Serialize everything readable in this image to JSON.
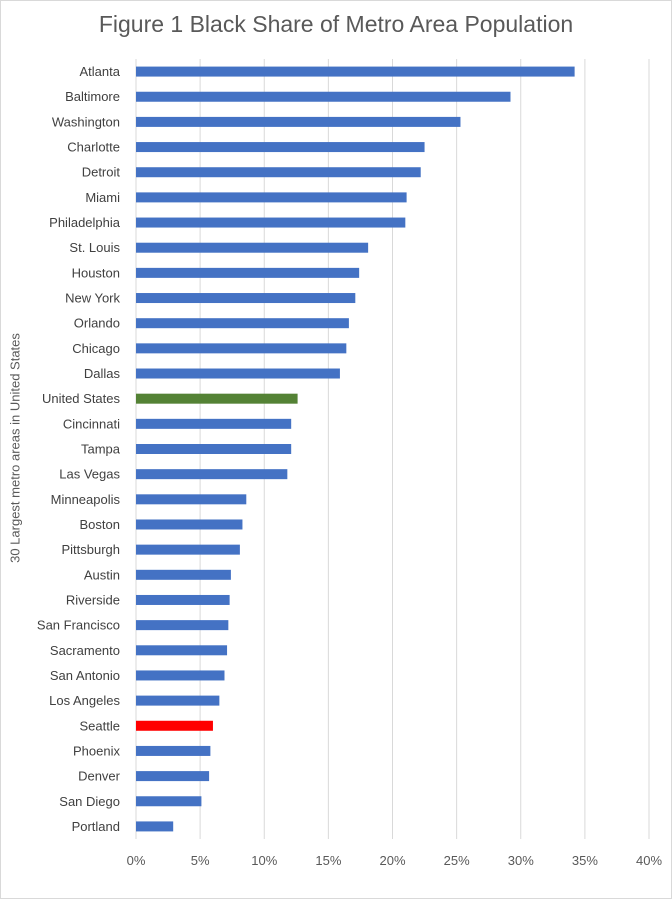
{
  "chart_data": {
    "type": "bar",
    "orientation": "horizontal",
    "title": "Figure 1 Black Share of Metro Area Population",
    "xlabel": "",
    "ylabel": "30 Largest metro areas in United States",
    "xlim": [
      0,
      40
    ],
    "x_unit": "%",
    "x_ticks": [
      "0%",
      "5%",
      "10%",
      "15%",
      "20%",
      "25%",
      "30%",
      "35%",
      "40%"
    ],
    "grid": "vertical",
    "legend": "none",
    "categories": [
      "Atlanta",
      "Baltimore",
      "Washington",
      "Charlotte",
      "Detroit",
      "Miami",
      "Philadelphia",
      "St. Louis",
      "Houston",
      "New York",
      "Orlando",
      "Chicago",
      "Dallas",
      "United States",
      "Cincinnati",
      "Tampa",
      "Las Vegas",
      "Minneapolis",
      "Boston",
      "Pittsburgh",
      "Austin",
      "Riverside",
      "San Francisco",
      "Sacramento",
      "San Antonio",
      "Los Angeles",
      "Seattle",
      "Phoenix",
      "Denver",
      "San Diego",
      "Portland"
    ],
    "values": [
      34.2,
      29.2,
      25.3,
      22.5,
      22.2,
      21.1,
      21.0,
      18.1,
      17.4,
      17.1,
      16.6,
      16.4,
      15.9,
      12.6,
      12.1,
      12.1,
      11.8,
      8.6,
      8.3,
      8.1,
      7.4,
      7.3,
      7.2,
      7.1,
      6.9,
      6.5,
      6.0,
      5.8,
      5.7,
      5.1,
      2.9
    ],
    "colors": {
      "default": "#4472c4",
      "United States": "#548235",
      "Seattle": "#ff0000"
    }
  }
}
